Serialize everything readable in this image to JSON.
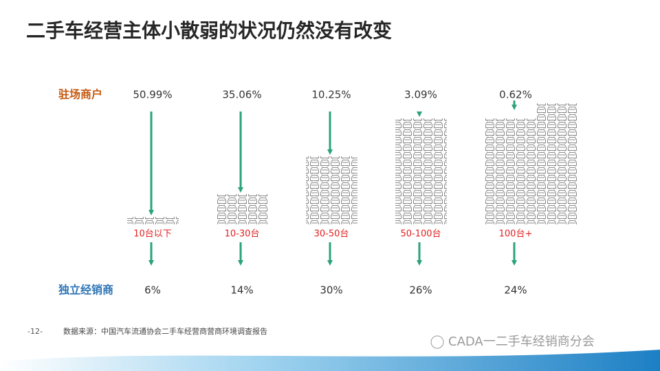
{
  "header": {
    "title": "二手车经营主体小散弱的状况仍然没有改变"
  },
  "rows": {
    "top": "驻场商户",
    "bottom": "独立经销商"
  },
  "groups": [
    {
      "top": "50.99%",
      "range": "10台以下",
      "bottom": "6%"
    },
    {
      "top": "35.06%",
      "range": "10-30台",
      "bottom": "14%"
    },
    {
      "top": "10.25%",
      "range": "30-50台",
      "bottom": "30%"
    },
    {
      "top": "3.09%",
      "range": "50-100台",
      "bottom": "26%"
    },
    {
      "top": "0.62%",
      "range": "100台+",
      "bottom": "24%"
    }
  ],
  "footer": {
    "page": "-12-",
    "source": "数据来源：中国汽车流通协会二手车经营商营商环境调查报告",
    "watermark": "CADA一二手车经销商分会"
  }
}
